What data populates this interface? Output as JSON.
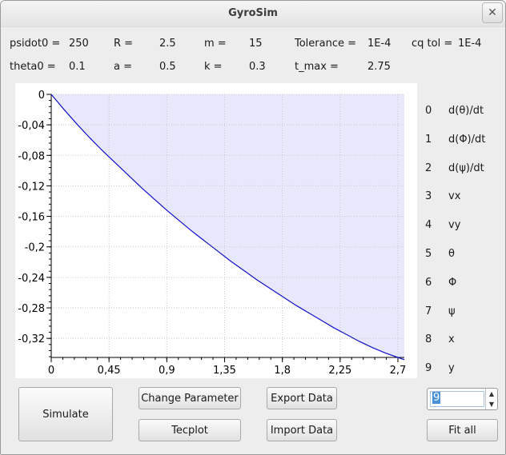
{
  "window": {
    "title": "GyroSim",
    "close_glyph": "✕"
  },
  "params": {
    "psidot0_label": "psidot0 =",
    "psidot0_value": "250",
    "R_label": "R =",
    "R_value": "2.5",
    "m_label": "m =",
    "m_value": "15",
    "tolerance_label": "Tolerance =",
    "tolerance_value": "1E-4",
    "cqtol_label": "cq tol =",
    "cqtol_value": "1E-4",
    "theta0_label": "theta0 =",
    "theta0_value": "0.1",
    "a_label": "a =",
    "a_value": "0.5",
    "k_label": "k =",
    "k_value": "0.3",
    "tmax_label": "t_max =",
    "tmax_value": "2.75"
  },
  "legend": [
    {
      "index": "0",
      "label": "d(θ)/dt"
    },
    {
      "index": "1",
      "label": "d(Φ)/dt"
    },
    {
      "index": "2",
      "label": "d(ψ)/dt"
    },
    {
      "index": "3",
      "label": "vx"
    },
    {
      "index": "4",
      "label": "vy"
    },
    {
      "index": "5",
      "label": "θ"
    },
    {
      "index": "6",
      "label": "Φ"
    },
    {
      "index": "7",
      "label": "ψ"
    },
    {
      "index": "8",
      "label": "x"
    },
    {
      "index": "9",
      "label": "y"
    }
  ],
  "buttons": {
    "simulate": "Simulate",
    "change_parameter": "Change Parameter",
    "tecplot": "Tecplot",
    "export_data": "Export Data",
    "import_data": "Import Data",
    "fit_all": "Fit all"
  },
  "spinbox": {
    "value": "9",
    "up_icon": "▲",
    "down_icon": "▼"
  },
  "colors": {
    "curve": "#1010c8",
    "fill": "#e8e8fc",
    "grid": "#c8c8c8"
  },
  "chart_data": {
    "type": "area",
    "title": "",
    "xlabel": "",
    "ylabel": "",
    "xlim": [
      0,
      2.75
    ],
    "ylim": [
      -0.345,
      0
    ],
    "grid": true,
    "x_ticks": [
      0,
      0.45,
      0.9,
      1.35,
      1.8,
      2.25,
      2.7
    ],
    "x_tick_labels": [
      "0",
      "0,45",
      "0,9",
      "1,35",
      "1,8",
      "2,25",
      "2,7"
    ],
    "y_ticks": [
      0,
      -0.04,
      -0.08,
      -0.12,
      -0.16,
      -0.2,
      -0.24,
      -0.28,
      -0.32
    ],
    "y_tick_labels": [
      "0",
      "-0,04",
      "-0,08",
      "-0,12",
      "-0,16",
      "-0,2",
      "-0,24",
      "-0,28",
      "-0,32"
    ],
    "series": [
      {
        "x": [
          0,
          0.1,
          0.2,
          0.3,
          0.4,
          0.5,
          0.6,
          0.7,
          0.8,
          0.9,
          1.0,
          1.1,
          1.2,
          1.3,
          1.4,
          1.5,
          1.6,
          1.7,
          1.8,
          1.9,
          2.0,
          2.1,
          2.2,
          2.3,
          2.4,
          2.5,
          2.6,
          2.7,
          2.75
        ],
        "y": [
          0,
          -0.02,
          -0.039,
          -0.057,
          -0.074,
          -0.09,
          -0.106,
          -0.122,
          -0.137,
          -0.152,
          -0.166,
          -0.18,
          -0.193,
          -0.206,
          -0.219,
          -0.231,
          -0.243,
          -0.254,
          -0.265,
          -0.276,
          -0.286,
          -0.296,
          -0.306,
          -0.315,
          -0.324,
          -0.332,
          -0.339,
          -0.345,
          -0.348
        ]
      }
    ]
  }
}
